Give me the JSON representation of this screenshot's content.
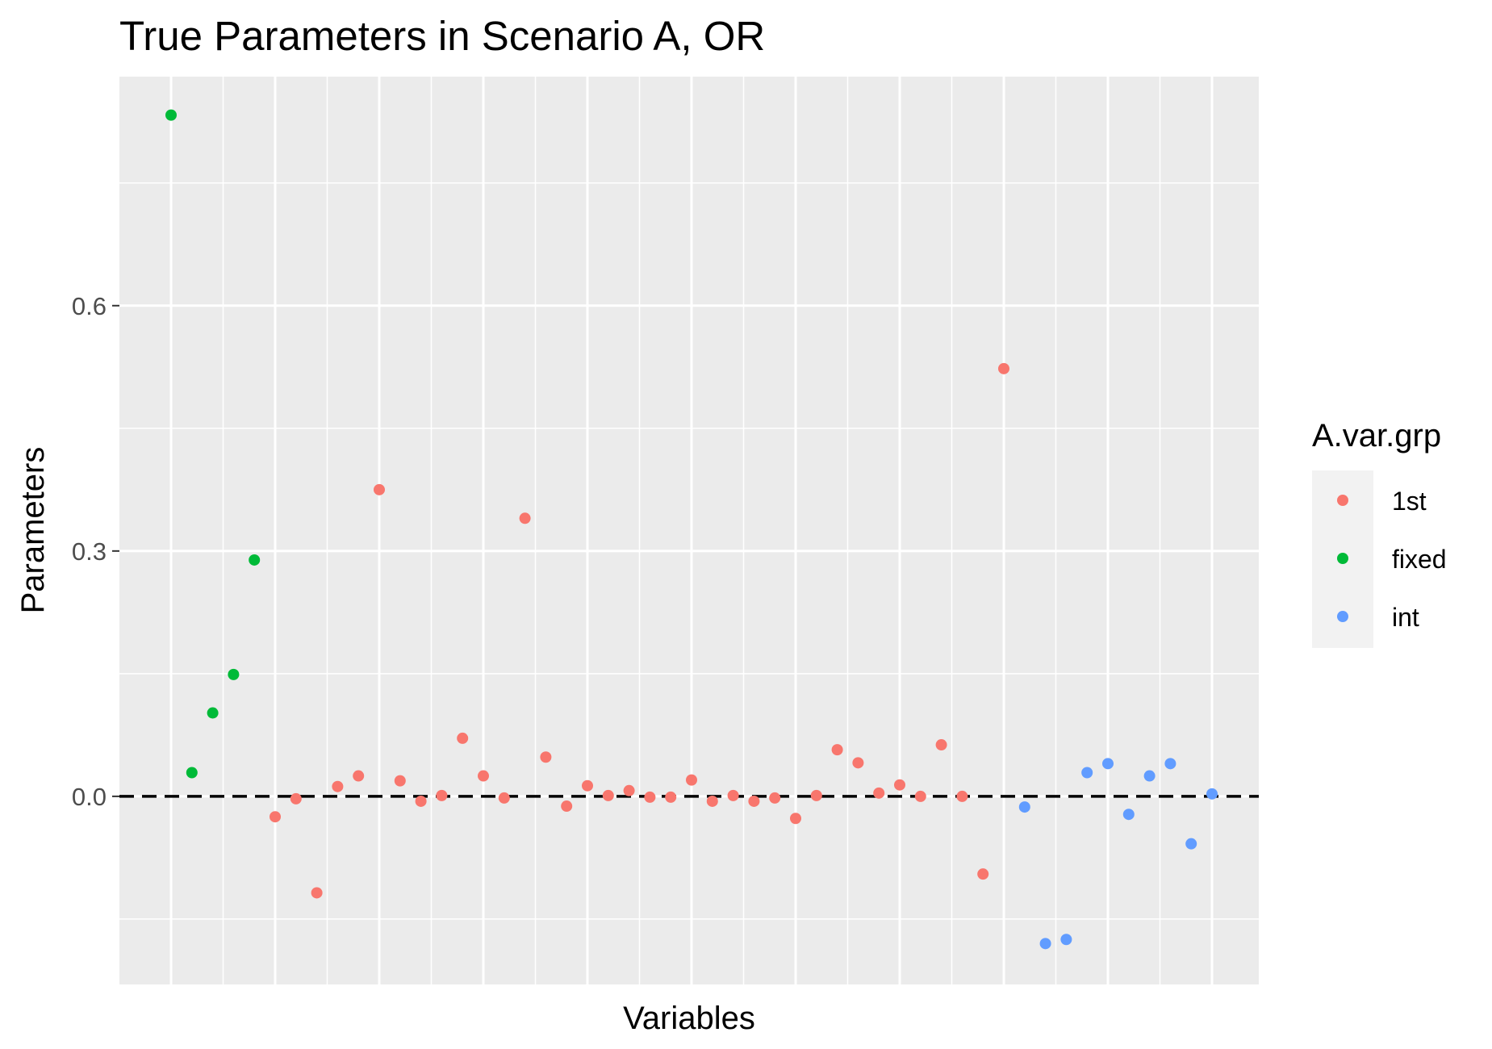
{
  "chart_data": {
    "type": "scatter",
    "title": "True Parameters in Scenario A, OR",
    "xlabel": "Variables",
    "ylabel": "Parameters",
    "ylim": [
      -0.23,
      0.88
    ],
    "yticks": [
      0.0,
      0.3,
      0.6
    ],
    "ytick_labels": [
      "0.0",
      "0.3",
      "0.6"
    ],
    "reference_line": {
      "y": 0.0,
      "style": "dashed"
    },
    "x_tick_labels_shown": false,
    "grid": true,
    "legend": {
      "title": "A.var.grp",
      "position": "right",
      "entries": [
        {
          "label": "1st",
          "color": "#F8766D"
        },
        {
          "label": "fixed",
          "color": "#00BA38"
        },
        {
          "label": "int",
          "color": "#619CFF"
        }
      ]
    },
    "series": [
      {
        "name": "1st",
        "color": "#F8766D",
        "points": [
          [
            6,
            -0.025
          ],
          [
            7,
            -0.003
          ],
          [
            8,
            -0.118
          ],
          [
            9,
            0.012
          ],
          [
            10,
            0.025
          ],
          [
            11,
            0.375
          ],
          [
            12,
            0.019
          ],
          [
            13,
            -0.006
          ],
          [
            14,
            0.001
          ],
          [
            15,
            0.071
          ],
          [
            16,
            0.025
          ],
          [
            17,
            -0.002
          ],
          [
            18,
            0.34
          ],
          [
            19,
            0.048
          ],
          [
            20,
            -0.012
          ],
          [
            21,
            0.013
          ],
          [
            22,
            0.001
          ],
          [
            23,
            0.007
          ],
          [
            24,
            -0.001
          ],
          [
            25,
            -0.001
          ],
          [
            26,
            0.02
          ],
          [
            27,
            -0.006
          ],
          [
            28,
            0.001
          ],
          [
            29,
            -0.006
          ],
          [
            30,
            -0.002
          ],
          [
            31,
            -0.027
          ],
          [
            32,
            0.001
          ],
          [
            33,
            0.057
          ],
          [
            34,
            0.041
          ],
          [
            35,
            0.004
          ],
          [
            36,
            0.014
          ],
          [
            37,
            0.0
          ],
          [
            38,
            0.063
          ],
          [
            39,
            0.0
          ],
          [
            40,
            -0.095
          ],
          [
            41,
            0.523
          ]
        ]
      },
      {
        "name": "fixed",
        "color": "#00BA38",
        "points": [
          [
            1,
            0.833
          ],
          [
            2,
            0.029
          ],
          [
            3,
            0.102
          ],
          [
            4,
            0.149
          ],
          [
            5,
            0.289
          ]
        ]
      },
      {
        "name": "int",
        "color": "#619CFF",
        "points": [
          [
            42,
            -0.013
          ],
          [
            43,
            -0.18
          ],
          [
            44,
            -0.175
          ],
          [
            45,
            0.029
          ],
          [
            46,
            0.04
          ],
          [
            47,
            -0.022
          ],
          [
            48,
            0.025
          ],
          [
            49,
            0.04
          ],
          [
            50,
            -0.058
          ],
          [
            51,
            0.003
          ]
        ]
      }
    ]
  }
}
